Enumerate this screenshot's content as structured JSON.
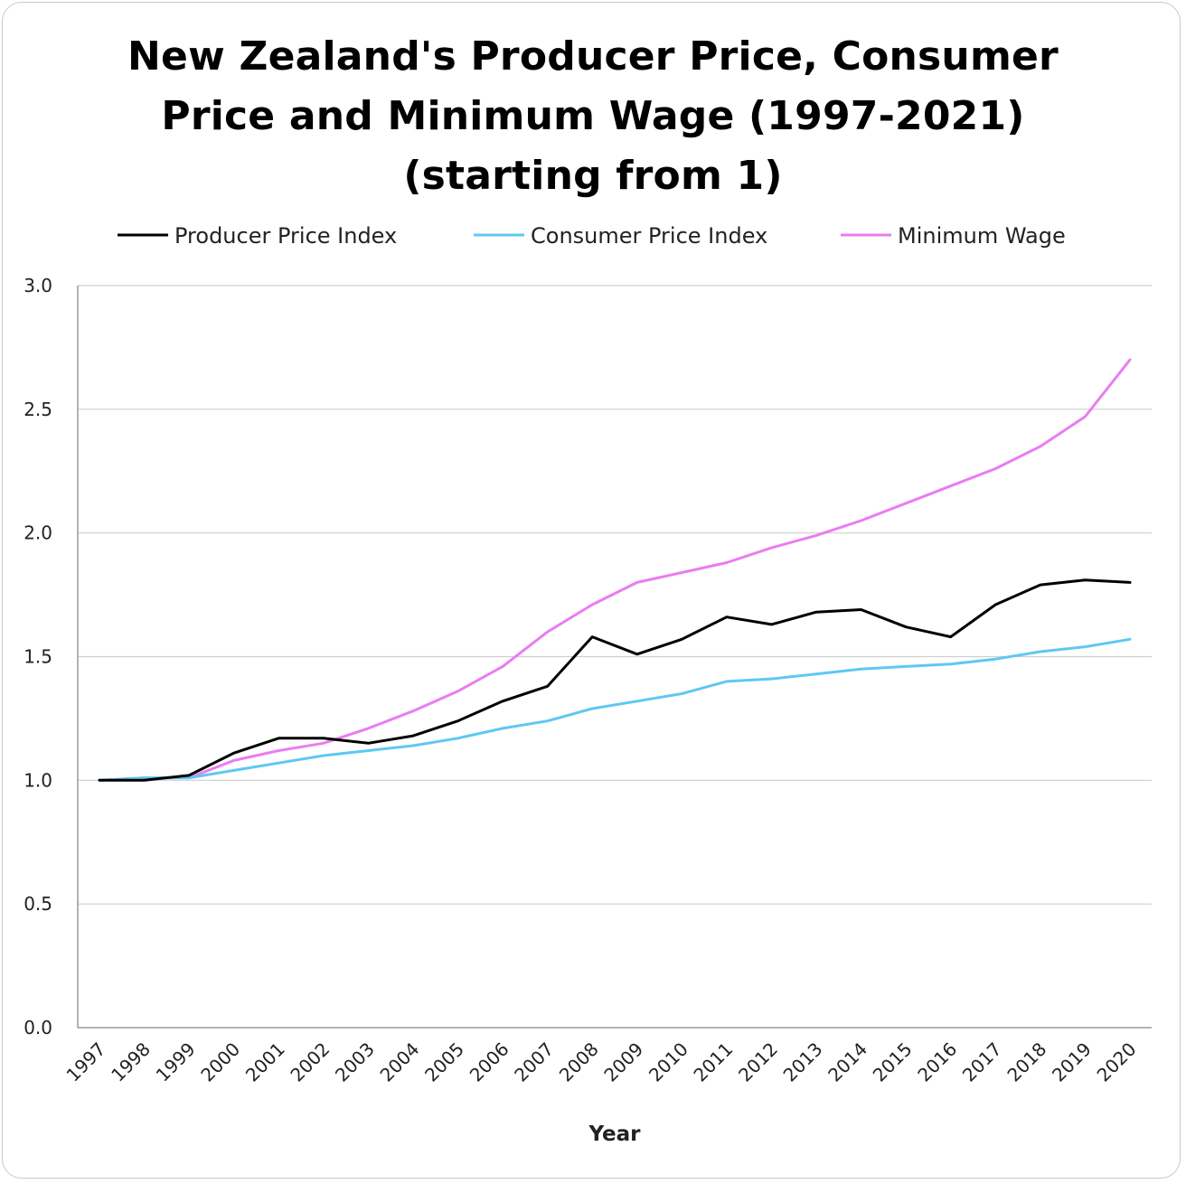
{
  "chart_data": {
    "type": "line",
    "title_lines": [
      "New Zealand's Producer Price, Consumer",
      "Price and Minimum Wage (1997-2021)",
      "(starting from 1)"
    ],
    "xlabel": "Year",
    "ylabel": "",
    "ylim": [
      0,
      3
    ],
    "yticks": [
      "0.0",
      "0.5",
      "1.0",
      "1.5",
      "2.0",
      "2.5",
      "3.0"
    ],
    "grid": true,
    "legend_position": "top",
    "categories": [
      "1997",
      "1998",
      "1999",
      "2000",
      "2001",
      "2002",
      "2003",
      "2004",
      "2005",
      "2006",
      "2007",
      "2008",
      "2009",
      "2010",
      "2011",
      "2012",
      "2013",
      "2014",
      "2015",
      "2016",
      "2017",
      "2018",
      "2019",
      "2020"
    ],
    "series": [
      {
        "name": "Producer Price Index",
        "color": "#000000",
        "values": [
          1.0,
          1.0,
          1.02,
          1.11,
          1.17,
          1.17,
          1.15,
          1.18,
          1.24,
          1.32,
          1.38,
          1.58,
          1.51,
          1.57,
          1.66,
          1.63,
          1.68,
          1.69,
          1.62,
          1.58,
          1.71,
          1.79,
          1.81,
          1.8
        ]
      },
      {
        "name": "Consumer Price Index",
        "color": "#5ec8f2",
        "values": [
          1.0,
          1.01,
          1.01,
          1.04,
          1.07,
          1.1,
          1.12,
          1.14,
          1.17,
          1.21,
          1.24,
          1.29,
          1.32,
          1.35,
          1.4,
          1.41,
          1.43,
          1.45,
          1.46,
          1.47,
          1.49,
          1.52,
          1.54,
          1.57
        ]
      },
      {
        "name": "Minimum Wage",
        "color": "#ea7cf2",
        "values": [
          1.0,
          1.01,
          1.01,
          1.08,
          1.12,
          1.15,
          1.21,
          1.28,
          1.36,
          1.46,
          1.6,
          1.71,
          1.8,
          1.84,
          1.88,
          1.94,
          1.99,
          2.05,
          2.12,
          2.19,
          2.26,
          2.35,
          2.47,
          2.7
        ]
      }
    ]
  }
}
